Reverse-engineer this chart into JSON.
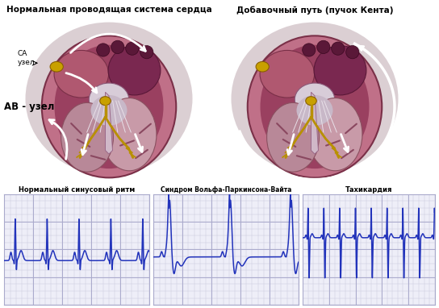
{
  "title_left": "Нормальная проводящая система сердца",
  "title_right": "Добавочный путь (пучок Кента)",
  "label_sa": "СА\nузел",
  "label_av": "АВ - узел",
  "ecg_labels": [
    "Нормальный синусовый ритм",
    "Синдром Вольфа-Паркинсона-Вайта",
    "Тахикардия"
  ],
  "bg_color": "#ffffff",
  "ecg_line_color": "#2233bb",
  "ecg_grid_minor": "#ccccdd",
  "ecg_grid_major": "#aaaacc",
  "ecg_bg": "#eeeef8",
  "heart_outer": "#c07088",
  "heart_muscle": "#b05870",
  "heart_la": "#7a2850",
  "heart_ra": "#9a4060",
  "heart_lv": "#d0a0b0",
  "heart_rv": "#c090a0",
  "heart_white": "#e8d8e0",
  "heart_tendon": "#e0e0e8",
  "node_color": "#c8a000",
  "bundle_color": "#b89000",
  "arrow_color": "#ffffff",
  "skin_bg": "#d0b0b8"
}
